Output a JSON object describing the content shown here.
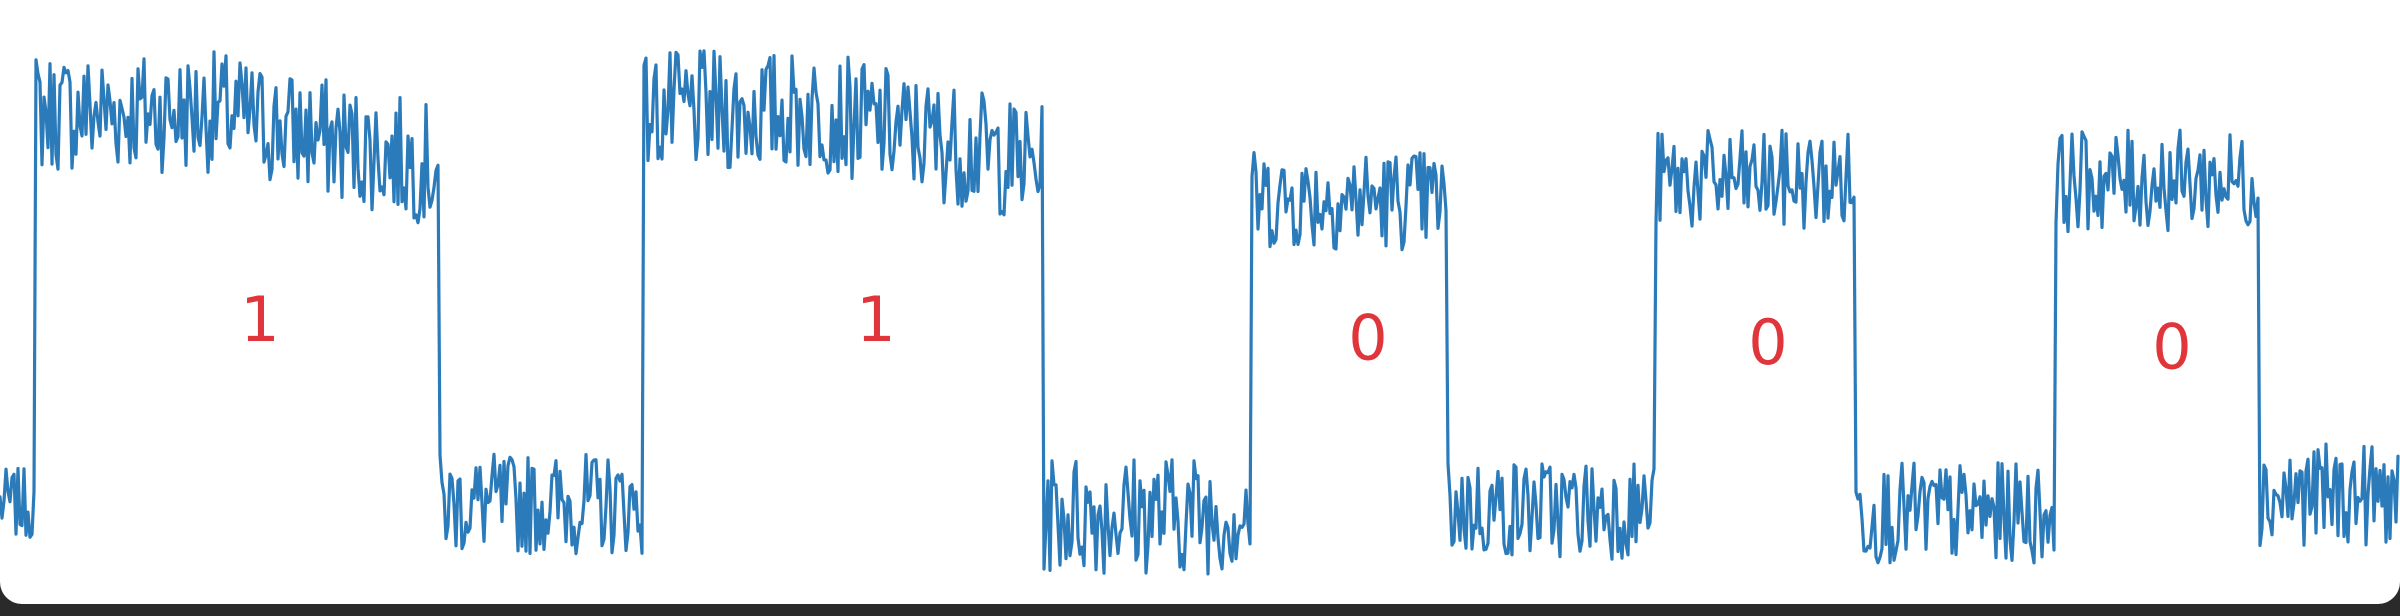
{
  "chart_data": {
    "type": "line",
    "title": "",
    "xlabel": "",
    "ylabel": "",
    "grid": false,
    "legend": "none",
    "xlim": [
      0,
      600
    ],
    "ylim": [
      -0.15,
      1.15
    ],
    "series": [
      {
        "color": "#2b7bba",
        "segments": [
          {
            "start": 0,
            "end": 9,
            "level": 0.08,
            "noise": 0.035,
            "trend": 0
          },
          {
            "start": 9,
            "end": 110,
            "level": 0.93,
            "noise": 0.06,
            "trend": 0,
            "shape": "decay"
          },
          {
            "start": 110,
            "end": 161,
            "level": 0.08,
            "noise": 0.05,
            "trend": 0
          },
          {
            "start": 161,
            "end": 261,
            "level": 0.93,
            "noise": 0.06,
            "trend": 0,
            "shape": "decay"
          },
          {
            "start": 261,
            "end": 313,
            "level": 0.06,
            "noise": 0.06,
            "trend": 0
          },
          {
            "start": 313,
            "end": 362,
            "level": 0.74,
            "noise": 0.05,
            "trend": 0
          },
          {
            "start": 362,
            "end": 414,
            "level": 0.07,
            "noise": 0.05,
            "trend": 0
          },
          {
            "start": 414,
            "end": 464,
            "level": 0.78,
            "noise": 0.05,
            "trend": 0
          },
          {
            "start": 464,
            "end": 514,
            "level": 0.06,
            "noise": 0.05,
            "trend": 0
          },
          {
            "start": 514,
            "end": 565,
            "level": 0.78,
            "noise": 0.05,
            "trend": 0
          },
          {
            "start": 565,
            "end": 600,
            "level": 0.1,
            "noise": 0.05,
            "trend": 0
          }
        ]
      }
    ],
    "annotations": [
      {
        "text": "1",
        "x": 65,
        "y": 0.47,
        "color": "#e0353b"
      },
      {
        "text": "1",
        "x": 219,
        "y": 0.47,
        "color": "#e0353b"
      },
      {
        "text": "0",
        "x": 342,
        "y": 0.43,
        "color": "#e0353b"
      },
      {
        "text": "0",
        "x": 442,
        "y": 0.42,
        "color": "#e0353b"
      },
      {
        "text": "0",
        "x": 543,
        "y": 0.41,
        "color": "#e0353b"
      }
    ]
  }
}
